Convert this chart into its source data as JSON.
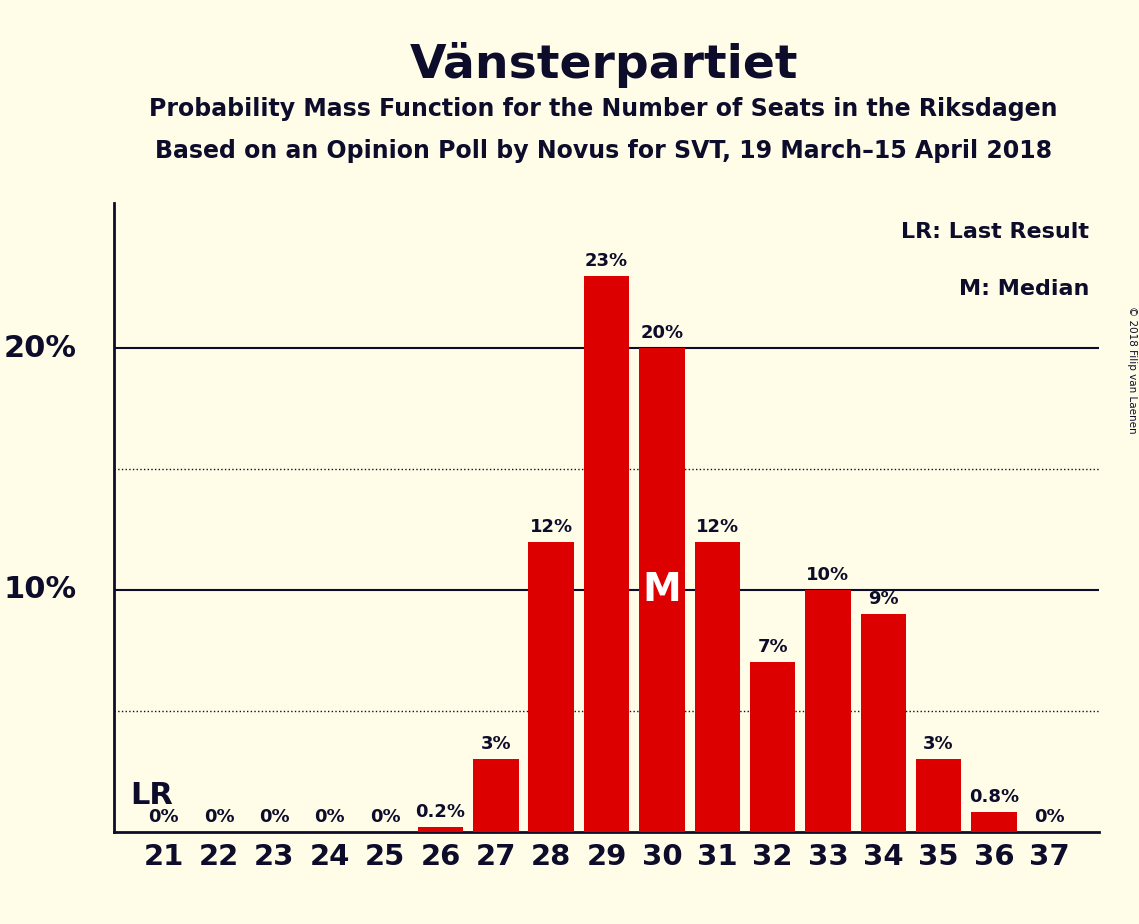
{
  "title": "Vänsterpartiet",
  "subtitle1": "Probability Mass Function for the Number of Seats in the Riksdagen",
  "subtitle2": "Based on an Opinion Poll by Novus for SVT, 19 March–15 April 2018",
  "copyright": "© 2018 Filip van Laenen",
  "legend_lr": "LR: Last Result",
  "legend_m": "M: Median",
  "lr_label": "LR",
  "median_label": "M",
  "seats": [
    21,
    22,
    23,
    24,
    25,
    26,
    27,
    28,
    29,
    30,
    31,
    32,
    33,
    34,
    35,
    36,
    37
  ],
  "values": [
    0,
    0,
    0,
    0,
    0,
    0.2,
    3,
    12,
    23,
    20,
    12,
    7,
    10,
    9,
    3,
    0.8,
    0
  ],
  "bar_color": "#dd0000",
  "background_color": "#fffde8",
  "text_color": "#0d0d2b",
  "lr_seat": 27,
  "median_seat": 30,
  "ylim": [
    0,
    26
  ],
  "solid_gridlines": [
    10,
    20
  ],
  "dotted_gridlines": [
    5,
    15
  ],
  "label_fontsize": 13,
  "title_fontsize": 34,
  "subtitle_fontsize": 17,
  "tick_fontsize": 21,
  "yaxis_label_fontsize": 22,
  "legend_fontsize": 16,
  "lr_fontsize": 22,
  "median_fontsize": 28
}
